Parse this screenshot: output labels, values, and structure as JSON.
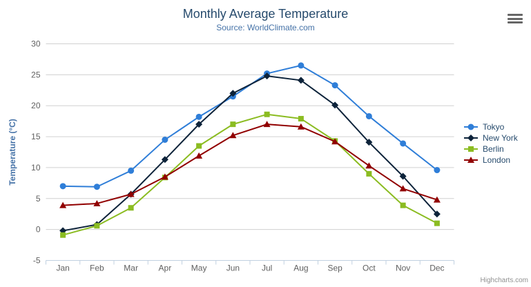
{
  "chart": {
    "title": "Monthly Average Temperature",
    "subtitle": "Source: WorldClimate.com",
    "credit": "Highcharts.com"
  },
  "icons": {
    "context_menu": "hamburger-icon"
  },
  "colors": {
    "title": "#274b6d",
    "subtitle": "#4572a7",
    "axis_labels": "#606060",
    "axis_title": "#4572a7",
    "grid": "#d0d0d0",
    "axis_line": "#c0d0e0",
    "legend_text": "#274b6d",
    "credit": "#909090"
  },
  "chart_data": {
    "type": "line",
    "title": "Monthly Average Temperature",
    "subtitle": "Source: WorldClimate.com",
    "categories": [
      "Jan",
      "Feb",
      "Mar",
      "Apr",
      "May",
      "Jun",
      "Jul",
      "Aug",
      "Sep",
      "Oct",
      "Nov",
      "Dec"
    ],
    "xlabel": "",
    "ylabel": "Temperature (°C)",
    "ylim": [
      -5,
      30
    ],
    "ytick_interval": 5,
    "yticks": [
      -5,
      0,
      5,
      10,
      15,
      20,
      25,
      30
    ],
    "grid": true,
    "legend_position": "right",
    "series": [
      {
        "name": "Tokyo",
        "color": "#2f7ed8",
        "marker": "circle",
        "values": [
          7.0,
          6.9,
          9.5,
          14.5,
          18.2,
          21.5,
          25.2,
          26.5,
          23.3,
          18.3,
          13.9,
          9.6
        ]
      },
      {
        "name": "New York",
        "color": "#0d233a",
        "marker": "diamond",
        "values": [
          -0.2,
          0.8,
          5.7,
          11.3,
          17.0,
          22.0,
          24.8,
          24.1,
          20.1,
          14.1,
          8.6,
          2.5
        ]
      },
      {
        "name": "Berlin",
        "color": "#8bbc21",
        "marker": "square",
        "values": [
          -0.9,
          0.6,
          3.5,
          8.4,
          13.5,
          17.0,
          18.6,
          17.9,
          14.3,
          9.0,
          3.9,
          1.0
        ]
      },
      {
        "name": "London",
        "color": "#910000",
        "marker": "triangle",
        "values": [
          3.9,
          4.2,
          5.7,
          8.5,
          11.9,
          15.2,
          17.0,
          16.6,
          14.2,
          10.3,
          6.6,
          4.8
        ]
      }
    ]
  }
}
